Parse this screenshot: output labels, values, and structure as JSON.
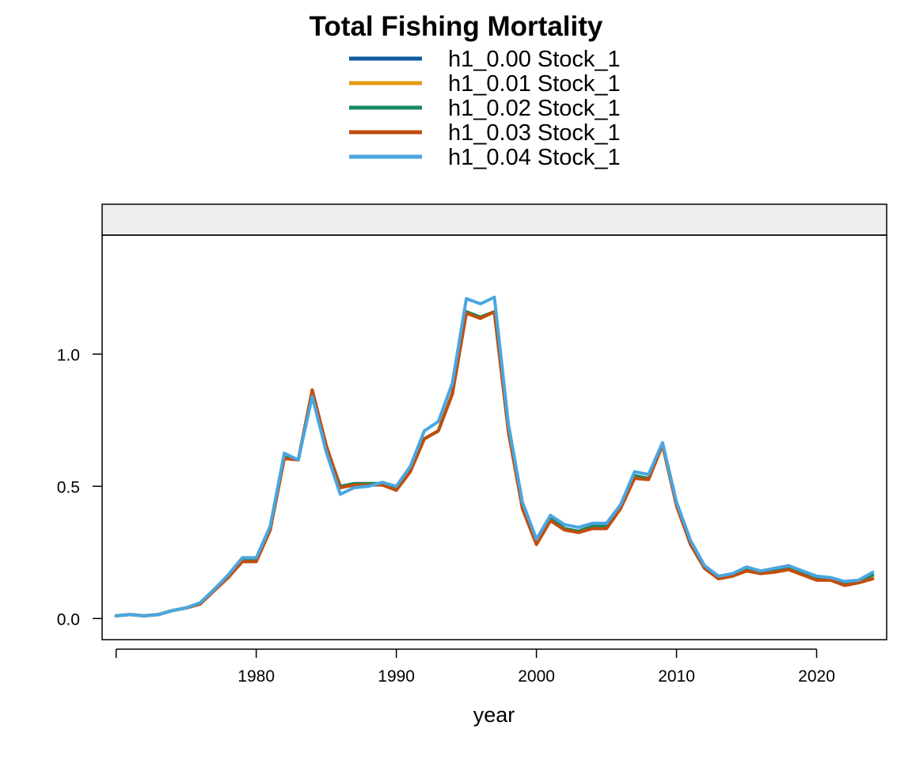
{
  "chart_data": {
    "type": "line",
    "title": "Total Fishing Mortality",
    "xlabel": "year",
    "ylabel": "",
    "strip_label": "",
    "xlim": [
      1969,
      2025
    ],
    "ylim": [
      -0.08,
      1.45
    ],
    "x_ticks": [
      1980,
      1990,
      2000,
      2010,
      2020
    ],
    "y_ticks": [
      0.0,
      0.5,
      1.0
    ],
    "y_tick_labels": [
      "0.0",
      "0.5",
      "1.0"
    ],
    "grid": false,
    "legend_position": "top",
    "x": [
      1970,
      1971,
      1972,
      1973,
      1974,
      1975,
      1976,
      1977,
      1978,
      1979,
      1980,
      1981,
      1982,
      1983,
      1984,
      1985,
      1986,
      1987,
      1988,
      1989,
      1990,
      1991,
      1992,
      1993,
      1994,
      1995,
      1996,
      1997,
      1998,
      1999,
      2000,
      2001,
      2002,
      2003,
      2004,
      2005,
      2006,
      2007,
      2008,
      2009,
      2010,
      2011,
      2012,
      2013,
      2014,
      2015,
      2016,
      2017,
      2018,
      2019,
      2020,
      2021,
      2022,
      2023,
      2024
    ],
    "series": [
      {
        "name": "h1_0.00 Stock_1",
        "color": "#0d5c9e",
        "values": [
          0.01,
          0.015,
          0.01,
          0.015,
          0.03,
          0.04,
          0.055,
          0.11,
          0.16,
          0.22,
          0.22,
          0.34,
          0.61,
          0.6,
          0.86,
          0.65,
          0.5,
          0.51,
          0.51,
          0.51,
          0.49,
          0.56,
          0.68,
          0.71,
          0.85,
          1.16,
          1.14,
          1.16,
          0.71,
          0.42,
          0.29,
          0.38,
          0.34,
          0.33,
          0.35,
          0.35,
          0.42,
          0.54,
          0.53,
          0.66,
          0.43,
          0.28,
          0.19,
          0.155,
          0.165,
          0.185,
          0.175,
          0.18,
          0.19,
          0.17,
          0.15,
          0.15,
          0.13,
          0.14,
          0.16
        ]
      },
      {
        "name": "h1_0.01 Stock_1",
        "color": "#e69a0f",
        "values": [
          0.01,
          0.015,
          0.01,
          0.015,
          0.03,
          0.04,
          0.055,
          0.11,
          0.16,
          0.22,
          0.22,
          0.34,
          0.61,
          0.6,
          0.86,
          0.65,
          0.5,
          0.51,
          0.51,
          0.51,
          0.49,
          0.56,
          0.68,
          0.71,
          0.85,
          1.16,
          1.14,
          1.16,
          0.71,
          0.42,
          0.29,
          0.38,
          0.34,
          0.33,
          0.35,
          0.35,
          0.42,
          0.54,
          0.53,
          0.66,
          0.43,
          0.28,
          0.19,
          0.155,
          0.165,
          0.185,
          0.175,
          0.18,
          0.19,
          0.17,
          0.15,
          0.15,
          0.13,
          0.14,
          0.16
        ]
      },
      {
        "name": "h1_0.02 Stock_1",
        "color": "#178a62",
        "values": [
          0.01,
          0.015,
          0.01,
          0.015,
          0.03,
          0.04,
          0.055,
          0.11,
          0.16,
          0.22,
          0.22,
          0.34,
          0.61,
          0.6,
          0.86,
          0.65,
          0.5,
          0.51,
          0.51,
          0.51,
          0.49,
          0.56,
          0.68,
          0.71,
          0.85,
          1.16,
          1.14,
          1.16,
          0.71,
          0.42,
          0.29,
          0.38,
          0.34,
          0.33,
          0.35,
          0.35,
          0.42,
          0.54,
          0.53,
          0.66,
          0.43,
          0.28,
          0.19,
          0.155,
          0.165,
          0.185,
          0.175,
          0.18,
          0.19,
          0.17,
          0.15,
          0.15,
          0.13,
          0.14,
          0.165
        ]
      },
      {
        "name": "h1_0.03 Stock_1",
        "color": "#c14e0d",
        "values": [
          0.01,
          0.015,
          0.01,
          0.015,
          0.03,
          0.04,
          0.055,
          0.105,
          0.155,
          0.215,
          0.215,
          0.335,
          0.605,
          0.6,
          0.865,
          0.655,
          0.495,
          0.505,
          0.505,
          0.505,
          0.485,
          0.555,
          0.68,
          0.71,
          0.85,
          1.155,
          1.135,
          1.16,
          0.705,
          0.415,
          0.28,
          0.37,
          0.335,
          0.325,
          0.34,
          0.34,
          0.415,
          0.53,
          0.525,
          0.655,
          0.425,
          0.28,
          0.19,
          0.15,
          0.16,
          0.18,
          0.17,
          0.175,
          0.185,
          0.165,
          0.145,
          0.145,
          0.125,
          0.135,
          0.15
        ]
      },
      {
        "name": "h1_0.04 Stock_1",
        "color": "#4aa6e0",
        "values": [
          0.01,
          0.015,
          0.01,
          0.015,
          0.03,
          0.04,
          0.06,
          0.11,
          0.165,
          0.23,
          0.23,
          0.35,
          0.625,
          0.6,
          0.84,
          0.63,
          0.47,
          0.495,
          0.5,
          0.515,
          0.5,
          0.575,
          0.71,
          0.745,
          0.89,
          1.21,
          1.19,
          1.215,
          0.735,
          0.44,
          0.3,
          0.39,
          0.355,
          0.345,
          0.36,
          0.36,
          0.43,
          0.555,
          0.545,
          0.665,
          0.44,
          0.295,
          0.2,
          0.16,
          0.17,
          0.195,
          0.18,
          0.19,
          0.2,
          0.18,
          0.16,
          0.155,
          0.14,
          0.145,
          0.175
        ]
      }
    ]
  }
}
